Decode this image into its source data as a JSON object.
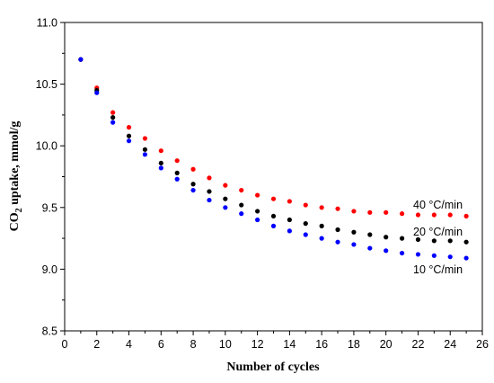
{
  "chart_data": {
    "type": "scatter",
    "title": "",
    "xlabel": "Number of cycles",
    "ylabel": {
      "prefix": "CO",
      "subscript": "2",
      "suffix": " uptake, mmol/g"
    },
    "xlim": [
      0,
      26
    ],
    "ylim": [
      8.5,
      11.0
    ],
    "xticks": [
      "0",
      "2",
      "4",
      "6",
      "8",
      "10",
      "12",
      "14",
      "16",
      "18",
      "20",
      "22",
      "24",
      "26"
    ],
    "yticks": [
      "8.5",
      "9.0",
      "9.5",
      "10.0",
      "10.5",
      "11.0"
    ],
    "grid": false,
    "legend": "inline-right",
    "x": [
      1,
      2,
      3,
      4,
      5,
      6,
      7,
      8,
      9,
      10,
      11,
      12,
      13,
      14,
      15,
      16,
      17,
      18,
      19,
      20,
      21,
      22,
      23,
      24,
      25
    ],
    "series": [
      {
        "name": "40 °C/min",
        "color": "#ff0000",
        "values": [
          10.7,
          10.47,
          10.27,
          10.15,
          10.06,
          9.96,
          9.88,
          9.81,
          9.74,
          9.68,
          9.64,
          9.6,
          9.57,
          9.55,
          9.52,
          9.5,
          9.49,
          9.47,
          9.46,
          9.46,
          9.45,
          9.44,
          9.44,
          9.44,
          9.43
        ]
      },
      {
        "name": "20 °C/min",
        "color": "#000000",
        "values": [
          10.7,
          10.45,
          10.23,
          10.08,
          9.97,
          9.86,
          9.78,
          9.69,
          9.63,
          9.57,
          9.52,
          9.47,
          9.43,
          9.4,
          9.37,
          9.35,
          9.32,
          9.3,
          9.28,
          9.26,
          9.25,
          9.24,
          9.23,
          9.23,
          9.22
        ]
      },
      {
        "name": "10 °C/min",
        "color": "#0000ff",
        "values": [
          10.7,
          10.43,
          10.19,
          10.04,
          9.93,
          9.82,
          9.73,
          9.64,
          9.56,
          9.5,
          9.45,
          9.4,
          9.35,
          9.31,
          9.28,
          9.25,
          9.22,
          9.2,
          9.17,
          9.15,
          9.13,
          9.12,
          9.11,
          9.1,
          9.09
        ]
      }
    ]
  }
}
